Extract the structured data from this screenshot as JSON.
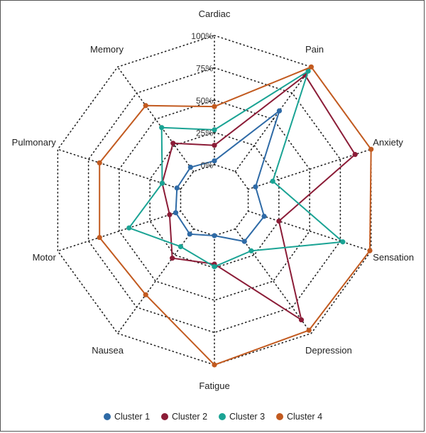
{
  "chart_data": {
    "type": "radar",
    "axes": [
      "Cardiac",
      "Pain",
      "Anxiety",
      "Sensation",
      "Depression",
      "Fatigue",
      "Nausea",
      "Motor",
      "Pulmonary",
      "Memory"
    ],
    "ticks": [
      "0%",
      "25%",
      "50%",
      "75%",
      "100%"
    ],
    "rlim": [
      0,
      100
    ],
    "grid": true,
    "legend_position": "bottom",
    "series": [
      {
        "name": "Cluster 1",
        "color": "#2e6aa6",
        "values": [
          3,
          58,
          6,
          13,
          12,
          0,
          5,
          4,
          3,
          4
        ]
      },
      {
        "name": "Cluster 2",
        "color": "#8b1c37",
        "values": [
          15,
          92,
          87,
          25,
          87,
          22,
          28,
          9,
          15,
          27
        ]
      },
      {
        "name": "Cluster 3",
        "color": "#1aa394",
        "values": [
          27,
          96,
          20,
          77,
          21,
          24,
          17,
          42,
          15,
          42
        ]
      },
      {
        "name": "Cluster 4",
        "color": "#c25a1f",
        "values": [
          45,
          100,
          100,
          99,
          97,
          100,
          63,
          66,
          66,
          63
        ]
      }
    ]
  }
}
